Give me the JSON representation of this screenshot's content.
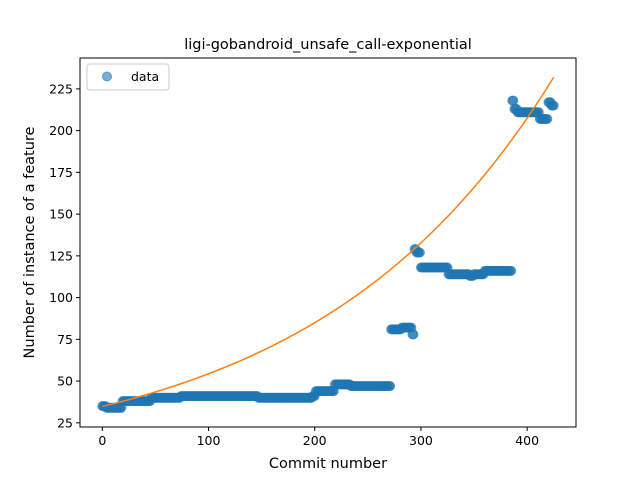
{
  "chart_data": {
    "type": "scatter",
    "title": "ligi-gobandroid_unsafe_call-exponential",
    "xlabel": "Commit number",
    "ylabel": "Number of instance of a feature",
    "xlim": [
      -21,
      446
    ],
    "ylim": [
      22.5,
      243.5
    ],
    "xticks": [
      0,
      100,
      200,
      300,
      400
    ],
    "yticks": [
      25,
      50,
      75,
      100,
      125,
      150,
      175,
      200,
      225
    ],
    "legend": {
      "placement": "top-left",
      "entries": [
        "data"
      ]
    },
    "grid": false,
    "colors": {
      "data": "#1f77b4",
      "fit": "#ff7f0e"
    },
    "series": [
      {
        "name": "data",
        "kind": "points",
        "segments": [
          {
            "from": 0,
            "to": 3,
            "value": 35
          },
          {
            "from": 4,
            "to": 18,
            "value": 34
          },
          {
            "from": 19,
            "to": 45,
            "value": 38
          },
          {
            "from": 46,
            "to": 73,
            "value": 40
          },
          {
            "from": 74,
            "to": 146,
            "value": 41
          },
          {
            "from": 147,
            "to": 197,
            "value": 40
          },
          {
            "from": 198,
            "to": 200,
            "value": 41
          },
          {
            "from": 201,
            "to": 218,
            "value": 44
          },
          {
            "from": 219,
            "to": 233,
            "value": 48
          },
          {
            "from": 234,
            "to": 271,
            "value": 47
          },
          {
            "from": 272,
            "to": 281,
            "value": 81
          },
          {
            "from": 282,
            "to": 291,
            "value": 82
          },
          {
            "from": 292,
            "to": 293,
            "value": 78
          },
          {
            "from": 294,
            "to": 295,
            "value": 129
          },
          {
            "from": 296,
            "to": 299,
            "value": 127
          },
          {
            "from": 300,
            "to": 325,
            "value": 118
          },
          {
            "from": 326,
            "to": 345,
            "value": 114
          },
          {
            "from": 346,
            "to": 349,
            "value": 113
          },
          {
            "from": 350,
            "to": 359,
            "value": 114
          },
          {
            "from": 360,
            "to": 385,
            "value": 116
          },
          {
            "from": 386,
            "to": 387,
            "value": 218
          },
          {
            "from": 388,
            "to": 390,
            "value": 213
          },
          {
            "from": 391,
            "to": 411,
            "value": 211
          },
          {
            "from": 412,
            "to": 419,
            "value": 207
          },
          {
            "from": 420,
            "to": 422,
            "value": 217
          },
          {
            "from": 423,
            "to": 425,
            "value": 215
          }
        ]
      },
      {
        "name": "",
        "kind": "line",
        "model": "exponential",
        "params": {
          "a": 34.8,
          "b": 0.0044637,
          "x_start": 0,
          "x_end": 425
        }
      }
    ]
  }
}
